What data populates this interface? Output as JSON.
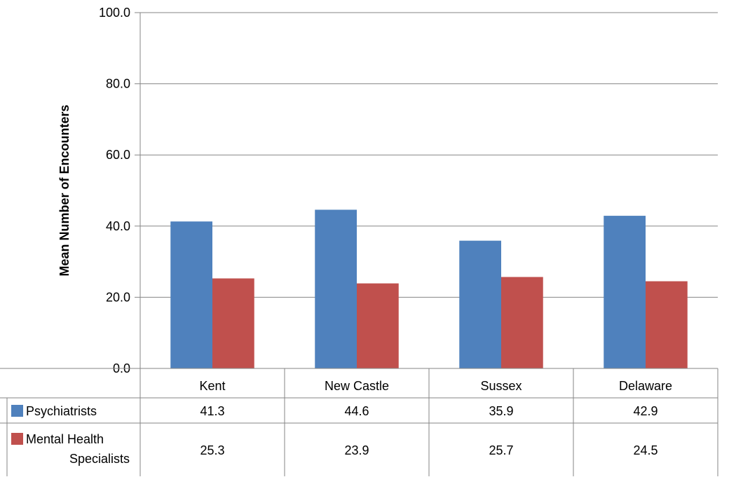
{
  "chart_data": {
    "type": "bar",
    "title": "",
    "xlabel": "",
    "ylabel": "Mean Number of Encounters",
    "ylim": [
      0,
      100
    ],
    "yticks": [
      "0.0",
      "20.0",
      "40.0",
      "60.0",
      "80.0",
      "100.0"
    ],
    "categories": [
      "Kent",
      "New Castle",
      "Sussex",
      "Delaware"
    ],
    "grid": true,
    "legend": "data-table",
    "series": [
      {
        "name": "Psychiatrists",
        "legend_lines": [
          "Psychiatrists"
        ],
        "color": "#4f81bd",
        "values": [
          41.3,
          44.6,
          35.9,
          42.9
        ],
        "labels": [
          "41.3",
          "44.6",
          "35.9",
          "42.9"
        ]
      },
      {
        "name": "Mental Health Specialists",
        "legend_lines": [
          "Mental Health",
          "Specialists"
        ],
        "color": "#c0504d",
        "values": [
          25.3,
          23.9,
          25.7,
          24.5
        ],
        "labels": [
          "25.3",
          "23.9",
          "25.7",
          "24.5"
        ]
      }
    ]
  }
}
